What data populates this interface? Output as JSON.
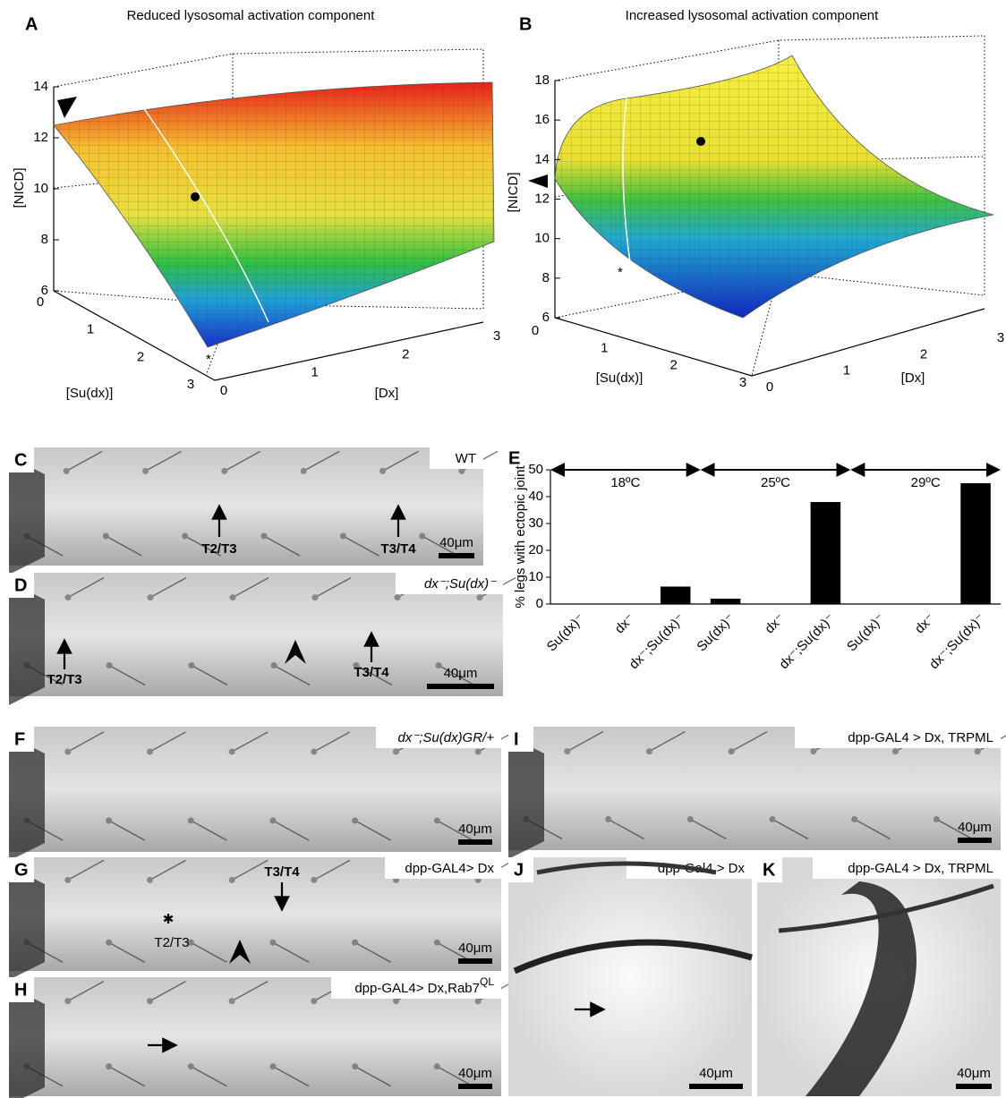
{
  "panel_a": {
    "letter": "A",
    "title": "Reduced lysosomal activation component",
    "z_label": "[NICD]",
    "x_label": "[Dx]",
    "y_label": "[Su(dx)]",
    "zlim": [
      6,
      14
    ],
    "zticks": [
      6,
      8,
      10,
      12,
      14
    ],
    "xlim": [
      0,
      3
    ],
    "xticks": [
      0,
      1,
      2,
      3
    ],
    "ylim": [
      0,
      3
    ],
    "yticks": [
      0,
      1,
      2,
      3
    ],
    "marker": "*"
  },
  "panel_b": {
    "letter": "B",
    "title": "Increased lysosomal activation component",
    "z_label": "[NICD]",
    "x_label": "[Dx]",
    "y_label": "[Su(dx)]",
    "zlim": [
      6,
      18
    ],
    "zticks": [
      6,
      8,
      10,
      12,
      14,
      16,
      18
    ],
    "xlim": [
      0,
      3
    ],
    "xticks": [
      0,
      1,
      2,
      3
    ],
    "ylim": [
      0,
      3
    ],
    "yticks": [
      0,
      1,
      2,
      3
    ],
    "marker": "*"
  },
  "panel_c": {
    "letter": "C",
    "label": "WT",
    "arrows": [
      "T2/T3",
      "T3/T4"
    ],
    "scale_bar": "40μm"
  },
  "panel_d": {
    "letter": "D",
    "label": "dx⁻;Su(dx)⁻",
    "arrows": [
      "T2/T3",
      "T3/T4"
    ],
    "scale_bar": "40μm"
  },
  "chart_data": {
    "type": "bar",
    "letter": "E",
    "y_label": "% legs with ectopic joint",
    "groups": [
      "18ºC",
      "25ºC",
      "29ºC"
    ],
    "categories": [
      "Su(dx)⁻",
      "dx⁻",
      "dx⁻;Su(dx)⁻",
      "Su(dx)⁻",
      "dx⁻",
      "dx⁻;Su(dx)⁻",
      "Su(dx)⁻",
      "dx⁻",
      "dx⁻;Su(dx)⁻"
    ],
    "values": [
      0,
      0,
      6.5,
      2,
      0,
      38,
      0,
      0,
      45
    ],
    "color": "#000000",
    "ylim": [
      0,
      50
    ],
    "yticks": [
      0,
      10,
      20,
      30,
      40,
      50
    ]
  },
  "panel_f": {
    "letter": "F",
    "label": "dx⁻;Su(dx)GR/+",
    "scale_bar": "40μm"
  },
  "panel_g": {
    "letter": "G",
    "label": "dpp-GAL4> Dx",
    "arrows": [
      "T3/T4"
    ],
    "marker": "✱",
    "annotation": "T2/T3",
    "scale_bar": "40μm"
  },
  "panel_h": {
    "letter": "H",
    "label": "dpp-GAL4> Dx,Rab7",
    "label_sup": "QL",
    "scale_bar": "40μm"
  },
  "panel_i": {
    "letter": "I",
    "label": "dpp-GAL4 > Dx, TRPML",
    "scale_bar": "40μm"
  },
  "panel_j": {
    "letter": "J",
    "label": "dpp-Gal4 >  Dx",
    "scale_bar": "40μm"
  },
  "panel_k": {
    "letter": "K",
    "label": "dpp-GAL4 > Dx, TRPML",
    "scale_bar": "40μm"
  }
}
